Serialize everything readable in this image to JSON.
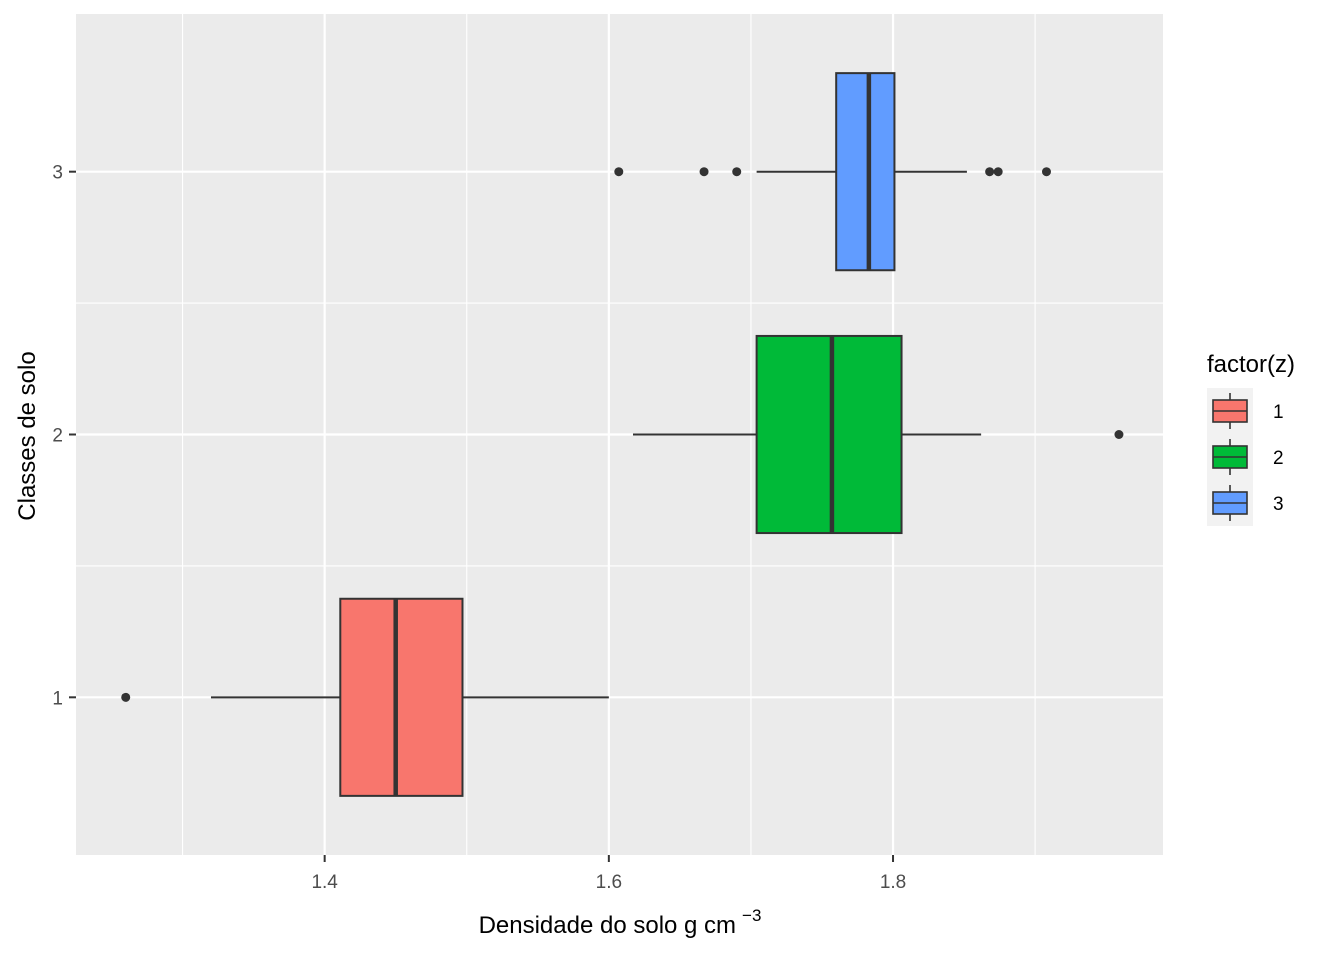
{
  "chart_data": {
    "type": "boxplot",
    "orientation": "horizontal",
    "xlabel": "Densidade do solo g cm",
    "xlabel_superscript": "−3",
    "ylabel": "Classes de solo",
    "xlim": [
      1.225,
      1.99
    ],
    "ylim": [
      0.4,
      3.6
    ],
    "x_ticks": [
      1.4,
      1.6,
      1.8
    ],
    "x_tick_labels": [
      "1.4",
      "1.6",
      "1.8"
    ],
    "y_ticks": [
      1,
      2,
      3
    ],
    "y_tick_labels": [
      "1",
      "2",
      "3"
    ],
    "grid": true,
    "legend": {
      "title": "factor(z)",
      "position": "right",
      "entries": [
        {
          "label": "1",
          "color": "#F8766D"
        },
        {
          "label": "2",
          "color": "#00BA38"
        },
        {
          "label": "3",
          "color": "#619CFF"
        }
      ]
    },
    "boxes": [
      {
        "category": "1",
        "y": 1,
        "whisker_low": 1.32,
        "q1": 1.411,
        "median": 1.45,
        "q3": 1.497,
        "whisker_high": 1.6,
        "outliers": [
          1.26
        ],
        "color": "#F8766D"
      },
      {
        "category": "2",
        "y": 2,
        "whisker_low": 1.617,
        "q1": 1.704,
        "median": 1.757,
        "q3": 1.806,
        "whisker_high": 1.862,
        "outliers": [
          1.959
        ],
        "color": "#00BA38"
      },
      {
        "category": "3",
        "y": 3,
        "whisker_low": 1.704,
        "q1": 1.76,
        "median": 1.783,
        "q3": 1.801,
        "whisker_high": 1.852,
        "outliers": [
          1.607,
          1.667,
          1.69,
          1.868,
          1.874,
          1.908
        ],
        "color": "#619CFF"
      }
    ]
  }
}
